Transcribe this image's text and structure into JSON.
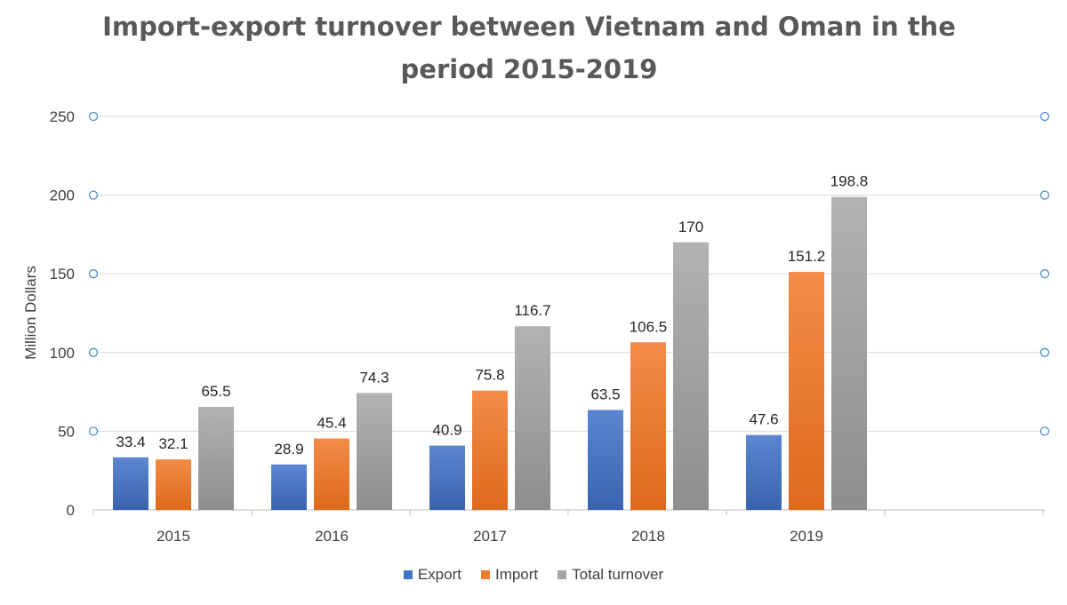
{
  "chart_data": {
    "type": "bar",
    "title_lines": [
      "Import-export turnover between Vietnam and Oman in the",
      "period 2015-2019"
    ],
    "ylabel": "Million Dollars",
    "xlabel": "",
    "categories": [
      "2015",
      "2016",
      "2017",
      "2018",
      "2019"
    ],
    "series": [
      {
        "name": "Export",
        "color": "#4472C4",
        "values": [
          33.4,
          28.9,
          40.9,
          63.5,
          47.6
        ]
      },
      {
        "name": "Import",
        "color": "#ED7D31",
        "values": [
          32.1,
          45.4,
          75.8,
          106.5,
          151.2
        ]
      },
      {
        "name": "Total turnover",
        "color": "#A5A5A5",
        "values": [
          65.5,
          74.3,
          116.7,
          170,
          198.8
        ]
      }
    ],
    "ylim": [
      0,
      250
    ],
    "yticks": [
      0,
      50,
      100,
      150,
      200,
      250
    ],
    "grid": true,
    "legend_position": "bottom"
  }
}
